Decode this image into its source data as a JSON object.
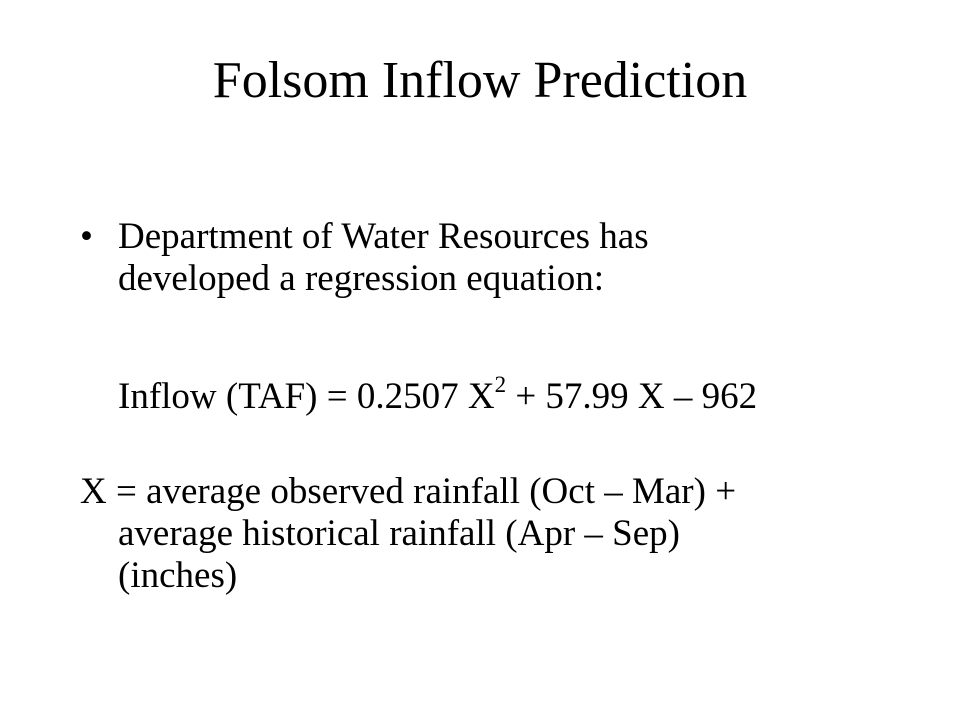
{
  "slide": {
    "title": "Folsom Inflow Prediction",
    "bullet": {
      "symbol": "•",
      "line1": "Department of Water Resources has",
      "line2": "developed a regression equation:"
    },
    "equation": {
      "lhs": "Inflow (TAF) = 0.2507 X",
      "exponent": "2",
      "rhs": " + 57.99 X – 962"
    },
    "definition": {
      "line1": "X = average observed rainfall (Oct – Mar) +",
      "line2": "average historical rainfall (Apr – Sep)",
      "line3": "(inches)"
    }
  }
}
